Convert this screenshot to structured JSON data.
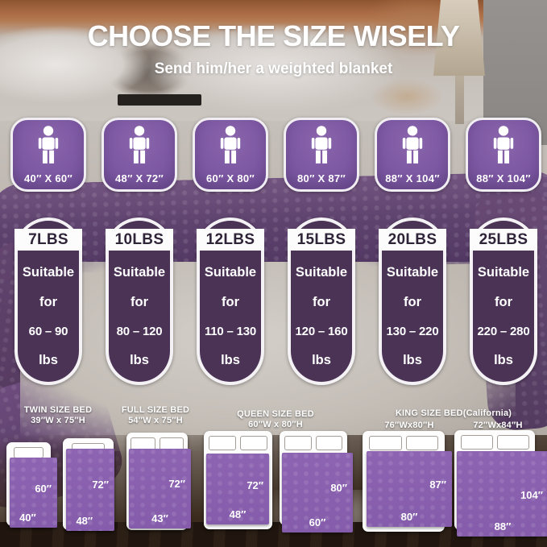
{
  "header": {
    "title": "CHOOSE THE SIZE WISELY",
    "subtitle": "Send him/her a weighted blanket"
  },
  "size_tiles": [
    {
      "size": "40″ X 60″"
    },
    {
      "size": "48″ X 72″"
    },
    {
      "size": "60″ X 80″"
    },
    {
      "size": "80″ X 87″"
    },
    {
      "size": "88″ X 104″"
    },
    {
      "size": "88″ X 104″"
    }
  ],
  "pill_labels": {
    "suitable": "Suitable",
    "for": "for",
    "unit": "lbs"
  },
  "weight_pills": [
    {
      "weight": "7LBS",
      "range": "60 – 90"
    },
    {
      "weight": "10LBS",
      "range": "80 – 120"
    },
    {
      "weight": "12LBS",
      "range": "110 – 130"
    },
    {
      "weight": "15LBS",
      "range": "120 – 160"
    },
    {
      "weight": "20LBS",
      "range": "130 – 220"
    },
    {
      "weight": "25LBS",
      "range": "220 – 280"
    }
  ],
  "bed_sections": [
    {
      "name": "TWIN SIZE BED",
      "dims": "39″W x 75″H"
    },
    {
      "name": "FULL SIZE BED",
      "dims": "54″W x 75″H"
    },
    {
      "name": "QUEEN SIZE BED",
      "dims": "60″W x 80″H"
    },
    {
      "name": "KING SIZE BED(California)",
      "dims_left": "76″Wx80″H",
      "dims_right": "72″Wx84″H"
    }
  ],
  "beds": [
    {
      "pillows": 1,
      "height_label": "60″",
      "width_label": "40″"
    },
    {
      "pillows": 1,
      "height_label": "72″",
      "width_label": "48″"
    },
    {
      "pillows": 2,
      "height_label": "72″",
      "width_label": "43″"
    },
    {
      "pillows": 2,
      "height_label": "72″",
      "width_label": "48″"
    },
    {
      "pillows": 2,
      "height_label": "80″",
      "width_label": "60″"
    },
    {
      "pillows": 2,
      "height_label": "87″",
      "width_label": "80″"
    },
    {
      "pillows": 2,
      "height_label": "104″",
      "width_label": "88″"
    }
  ],
  "colors": {
    "tile_purple": "#7d58a3",
    "pill_purple": "#4b3356",
    "pill_text_dark": "#2f2438",
    "blanket_purple": "#8d64b2"
  }
}
